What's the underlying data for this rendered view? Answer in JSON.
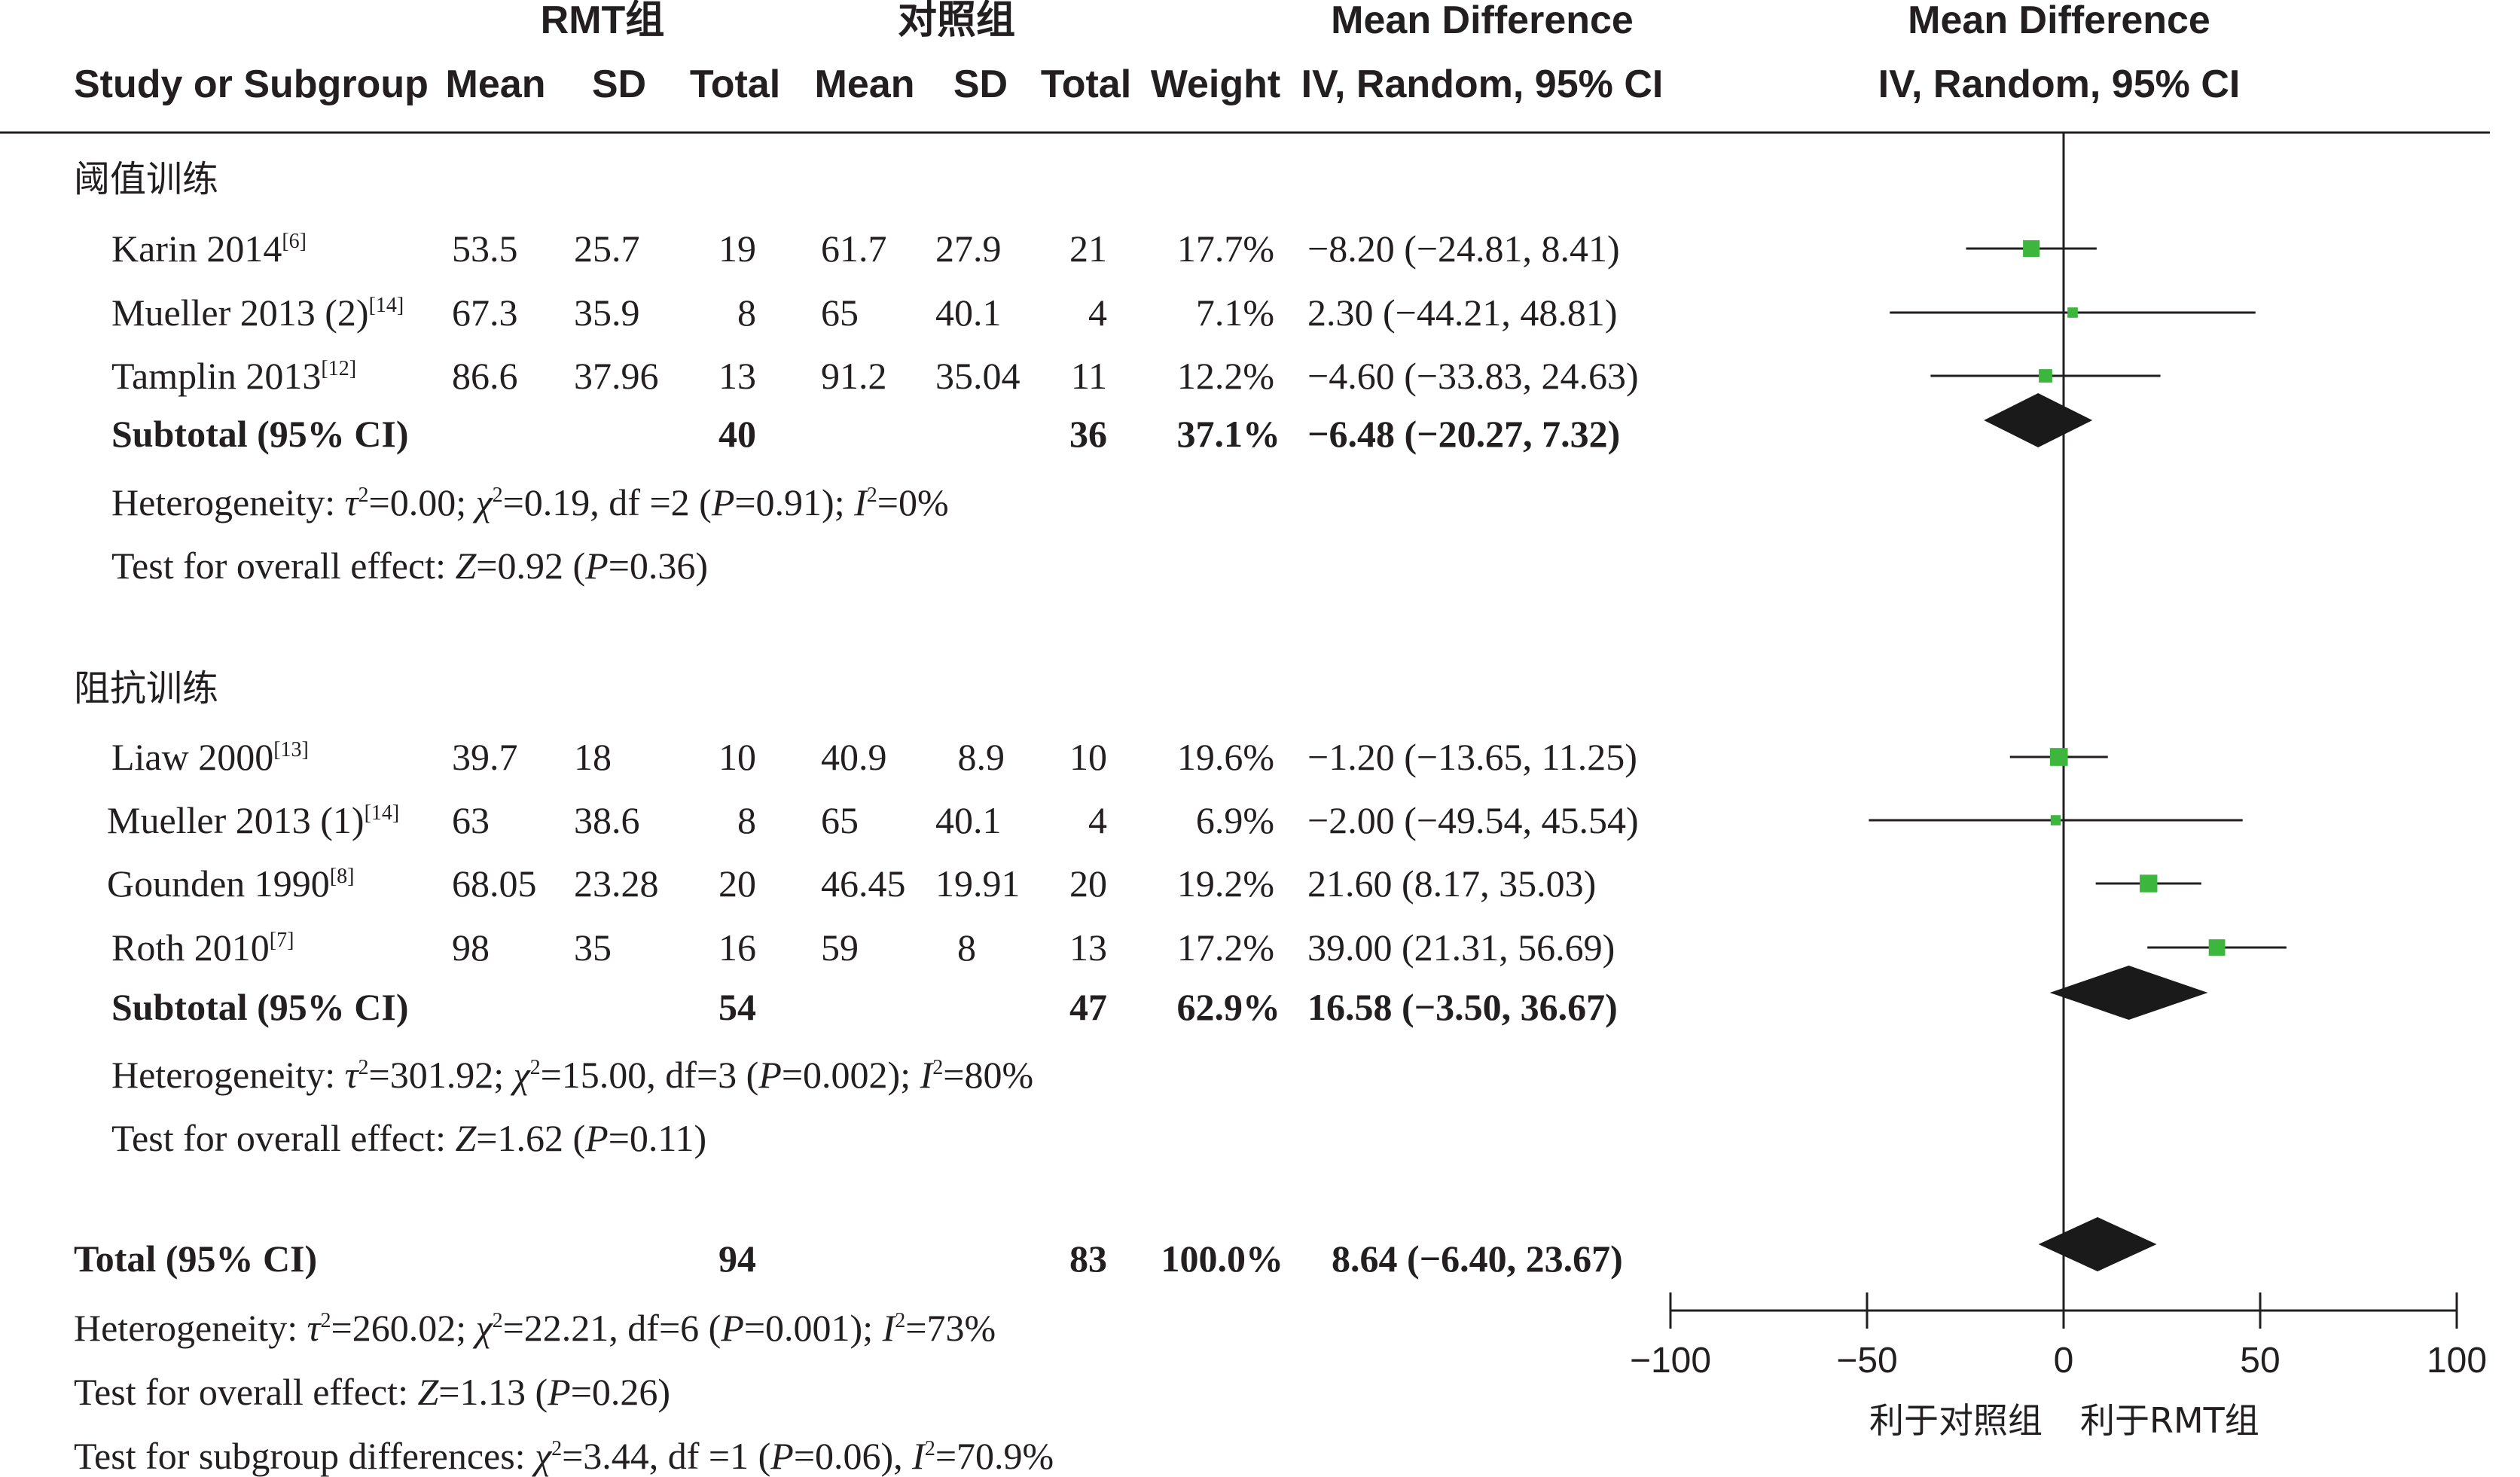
{
  "header": {
    "group1_title": "RMT组",
    "group2_title": "对照组",
    "effect_title": "Mean Difference",
    "effect_subtitle": "IV, Random, 95% CI",
    "plot_title": "Mean Difference",
    "plot_subtitle": "IV, Random, 95% CI",
    "col_study": "Study or Subgroup",
    "col_mean1": "Mean",
    "col_sd1": "SD",
    "col_total1": "Total",
    "col_mean2": "Mean",
    "col_sd2": "SD",
    "col_total2": "Total",
    "col_weight": "Weight"
  },
  "subgroups": [
    {
      "name": "阈值训练",
      "studies": [
        {
          "study": "Karin 2014",
          "ref": "[6]",
          "mean1": "53.5",
          "sd1": "25.7",
          "total1": "19",
          "mean2": "61.7",
          "sd2": "27.9",
          "total2": "21",
          "weight": "17.7%",
          "ci_text": "−8.20 (−24.81, 8.41)"
        },
        {
          "study": "Mueller 2013 (2)",
          "ref": "[14]",
          "mean1": "67.3",
          "sd1": "35.9",
          "total1": "8",
          "mean2": "65",
          "sd2": "40.1",
          "total2": "4",
          "weight": "7.1%",
          "ci_text": "2.30 (−44.21, 48.81)"
        },
        {
          "study": "Tamplin 2013",
          "ref": "[12]",
          "mean1": "86.6",
          "sd1": "37.96",
          "total1": "13",
          "mean2": "91.2",
          "sd2": "35.04",
          "total2": "11",
          "weight": "12.2%",
          "ci_text": "−4.60 (−33.83, 24.63)"
        }
      ],
      "subtotal": {
        "label": "Subtotal (95% CI)",
        "total1": "40",
        "total2": "36",
        "weight": "37.1%",
        "ci_text": "−6.48 (−20.27, 7.32)"
      },
      "heterogeneity": {
        "prefix": "Heterogeneity: ",
        "tau_sym": "τ",
        "tau2": "=0.00; ",
        "chi_sym": "χ",
        "chi2": "=0.19, df =2 (",
        "p_sym": "P",
        "p_val": "=0.91); ",
        "i_sym": "I",
        "i2": "=0%"
      },
      "overall": {
        "prefix": "Test for overall effect: ",
        "z_sym": "Z",
        "z": "=0.92 (",
        "p_sym": "P",
        "p": "=0.36)"
      }
    },
    {
      "name": "阻抗训练",
      "studies": [
        {
          "study": "Liaw 2000",
          "ref": "[13]",
          "mean1": "39.7",
          "sd1": "18",
          "total1": "10",
          "mean2": "40.9",
          "sd2": "8.9",
          "total2": "10",
          "weight": "19.6%",
          "ci_text": "−1.20 (−13.65, 11.25)"
        },
        {
          "study": "Mueller 2013 (1)",
          "ref": "[14]",
          "mean1": "63",
          "sd1": "38.6",
          "total1": "8",
          "mean2": "65",
          "sd2": "40.1",
          "total2": "4",
          "weight": "6.9%",
          "ci_text": "−2.00 (−49.54, 45.54)"
        },
        {
          "study": "Gounden 1990",
          "ref": "[8]",
          "mean1": "68.05",
          "sd1": "23.28",
          "total1": "20",
          "mean2": "46.45",
          "sd2": "19.91",
          "total2": "20",
          "weight": "19.2%",
          "ci_text": "21.60 (8.17, 35.03)"
        },
        {
          "study": "Roth 2010",
          "ref": "[7]",
          "mean1": "98",
          "sd1": "35",
          "total1": "16",
          "mean2": "59",
          "sd2": "8",
          "total2": "13",
          "weight": "17.2%",
          "ci_text": "39.00 (21.31, 56.69)"
        }
      ],
      "subtotal": {
        "label": "Subtotal (95% CI)",
        "total1": "54",
        "total2": "47",
        "weight": "62.9%",
        "ci_text": "16.58 (−3.50, 36.67)"
      },
      "heterogeneity": {
        "prefix": "Heterogeneity: ",
        "tau_sym": "τ",
        "tau2": "=301.92; ",
        "chi_sym": "χ",
        "chi2": "=15.00, df=3 (",
        "p_sym": "P",
        "p_val": "=0.002); ",
        "i_sym": "I",
        "i2": "=80%"
      },
      "overall": {
        "prefix": "Test for overall effect: ",
        "z_sym": "Z",
        "z": "=1.62 (",
        "p_sym": "P",
        "p": "=0.11)"
      }
    }
  ],
  "total": {
    "label": "Total (95% CI)",
    "total1": "94",
    "total2": "83",
    "weight": "100.0%",
    "ci_text": "8.64 (−6.40, 23.67)",
    "heterogeneity": {
      "prefix": "Heterogeneity: ",
      "tau_sym": "τ",
      "tau2": "=260.02; ",
      "chi_sym": "χ",
      "chi2": "=22.21, df=6 (",
      "p_sym": "P",
      "p_val": "=0.001); ",
      "i_sym": "I",
      "i2": "=73%"
    },
    "overall": {
      "prefix": "Test for overall effect: ",
      "z_sym": "Z",
      "z": "=1.13 (",
      "p_sym": "P",
      "p": "=0.26)"
    },
    "subgroup_diff": {
      "prefix": "Test for subgroup differences: ",
      "chi_sym": "χ",
      "chi2": "=3.44, df =1 (",
      "p_sym": "P",
      "p_val": "=0.06), ",
      "i_sym": "I",
      "i2": "=70.9%"
    }
  },
  "axis": {
    "favors_left": "利于对照组",
    "favors_right": "利于RMT组"
  },
  "colors": {
    "study_marker": "#3cb63c",
    "pooled_diamond": "#1a1a1a",
    "text": "#231f20",
    "line": "#231f20"
  },
  "chart_data": {
    "type": "forest",
    "xlim": [
      -100,
      100
    ],
    "xticks": [
      -100,
      -50,
      0,
      50,
      100
    ],
    "xtick_labels": [
      "−100",
      "−50",
      "0",
      "50",
      "100"
    ],
    "studies": [
      {
        "label": "Karin 2014",
        "subgroup": "阈值训练",
        "md": -8.2,
        "lo": -24.81,
        "hi": 8.41,
        "weight": 17.7
      },
      {
        "label": "Mueller 2013 (2)",
        "subgroup": "阈值训练",
        "md": 2.3,
        "lo": -44.21,
        "hi": 48.81,
        "weight": 7.1
      },
      {
        "label": "Tamplin 2013",
        "subgroup": "阈值训练",
        "md": -4.6,
        "lo": -33.83,
        "hi": 24.63,
        "weight": 12.2
      },
      {
        "label": "Liaw 2000",
        "subgroup": "阻抗训练",
        "md": -1.2,
        "lo": -13.65,
        "hi": 11.25,
        "weight": 19.6
      },
      {
        "label": "Mueller 2013 (1)",
        "subgroup": "阻抗训练",
        "md": -2.0,
        "lo": -49.54,
        "hi": 45.54,
        "weight": 6.9
      },
      {
        "label": "Gounden 1990",
        "subgroup": "阻抗训练",
        "md": 21.6,
        "lo": 8.17,
        "hi": 35.03,
        "weight": 19.2
      },
      {
        "label": "Roth 2010",
        "subgroup": "阻抗训练",
        "md": 39.0,
        "lo": 21.31,
        "hi": 56.69,
        "weight": 17.2
      }
    ],
    "pooled": [
      {
        "label": "Subtotal (95% CI)",
        "subgroup": "阈值训练",
        "md": -6.48,
        "lo": -20.27,
        "hi": 7.32
      },
      {
        "label": "Subtotal (95% CI)",
        "subgroup": "阻抗训练",
        "md": 16.58,
        "lo": -3.5,
        "hi": 36.67
      },
      {
        "label": "Total (95% CI)",
        "md": 8.64,
        "lo": -6.4,
        "hi": 23.67
      }
    ]
  }
}
